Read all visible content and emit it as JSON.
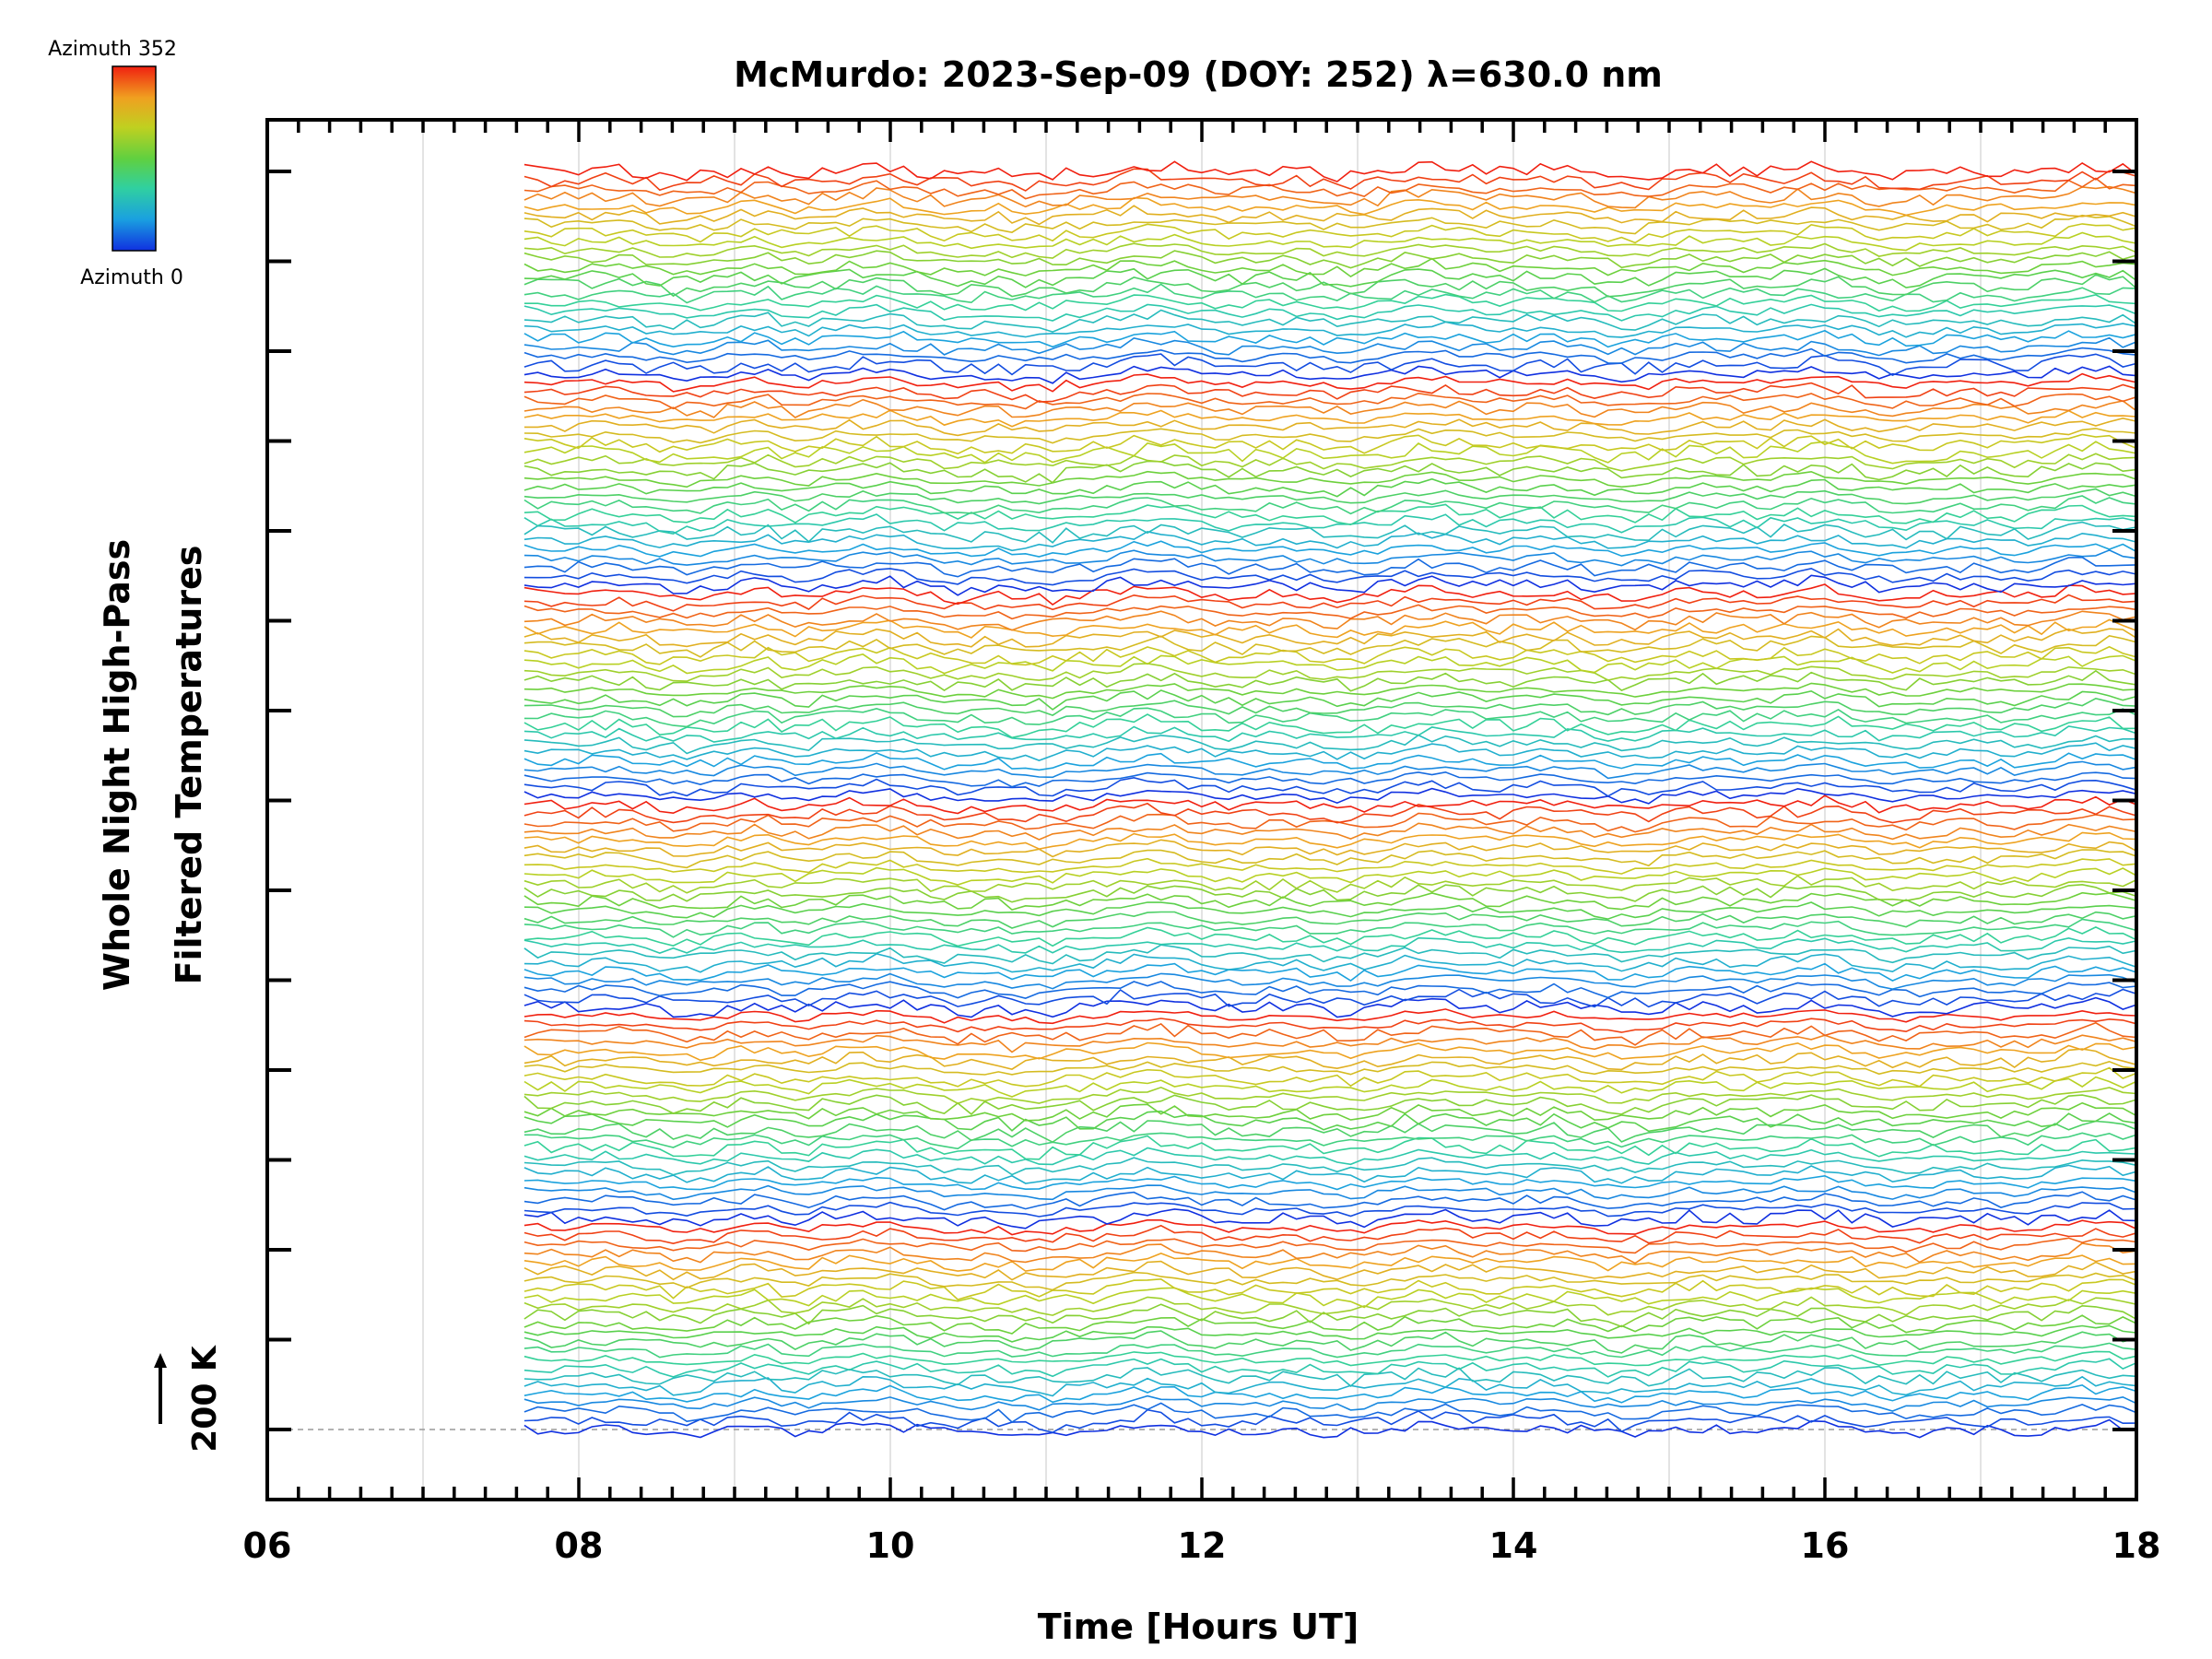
{
  "chart_data": {
    "type": "line",
    "title": "McMurdo: 2023-Sep-09 (DOY: 252) λ=630.0 nm",
    "xlabel": "Time [Hours UT]",
    "ylabel_lines": [
      "Whole Night High-Pass",
      "Filtered Temperatures"
    ],
    "xlim": [
      6,
      18
    ],
    "x_tick_labels": [
      "06",
      "08",
      "10",
      "12",
      "14",
      "16",
      "18"
    ],
    "x_tick_values": [
      6,
      8,
      10,
      12,
      14,
      16,
      18
    ],
    "x_grid_hours": [
      7,
      8,
      9,
      10,
      11,
      12,
      13,
      14,
      15,
      16,
      17
    ],
    "data_start_hour": 7.65,
    "data_end_hour": 18.0,
    "samples_per_series": 120,
    "y_major_ticks": 15,
    "y_minor_per_major": 0,
    "baseline_label": "200 K",
    "colorbar": {
      "top_label": "Azimuth 352",
      "bottom_label": "Azimuth 0",
      "colors": [
        "#1030e0",
        "#1aa0e0",
        "#30d0a0",
        "#60d040",
        "#c0d020",
        "#f0a020",
        "#f02010"
      ]
    },
    "groups": 6,
    "series_per_group": 24,
    "azimuth_cycle_deg": [
      0,
      352
    ],
    "note": "Stacked filtered-temperature traces, offset vertically; colour encodes azimuth 0 to 352 deg, repeated per zenith ring."
  }
}
